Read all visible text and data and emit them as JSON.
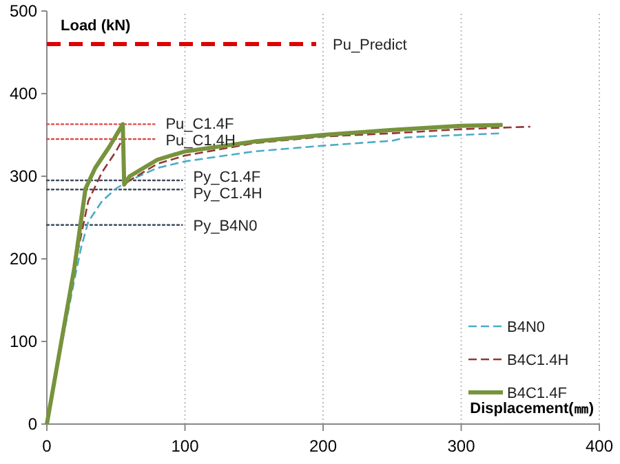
{
  "chart_data": {
    "type": "line",
    "xlabel": "Displacement(㎜)",
    "ylabel": "Load (kN)",
    "xlim": [
      0,
      400
    ],
    "xticks": [
      0,
      100,
      200,
      300,
      400
    ],
    "ylim": [
      0,
      500
    ],
    "yticks": [
      0,
      100,
      200,
      300,
      400,
      500
    ],
    "grid": "x",
    "legend": "bottom right",
    "marker": "none",
    "series": [
      {
        "x": [
          0,
          195
        ],
        "values": [
          460,
          460
        ],
        "color": "#e00000",
        "line_style": "dashed"
      },
      {
        "x": [
          0,
          78
        ],
        "values": [
          363,
          363
        ],
        "color": "#e04848",
        "line_style": "dotted"
      },
      {
        "x": [
          0,
          78
        ],
        "values": [
          345,
          345
        ],
        "color": "#e04848",
        "line_style": "dotted"
      },
      {
        "x": [
          0,
          98
        ],
        "values": [
          295,
          295
        ],
        "color": "#404a60",
        "line_style": "dotted"
      },
      {
        "x": [
          0,
          98
        ],
        "values": [
          284,
          284
        ],
        "color": "#404a60",
        "line_style": "dotted"
      },
      {
        "x": [
          0,
          98
        ],
        "values": [
          241,
          241
        ],
        "color": "#404a60",
        "line_style": "dotted"
      },
      {
        "name": "B4N0",
        "color": "#4bacc6",
        "line_style": "dashed",
        "x": [
          0,
          10,
          20,
          25,
          30,
          40,
          50,
          60,
          80,
          100,
          150,
          200,
          250,
          260,
          300,
          330
        ],
        "values": [
          0,
          90,
          175,
          215,
          245,
          270,
          285,
          295,
          310,
          318,
          330,
          337,
          343,
          347,
          350,
          352
        ]
      },
      {
        "name": "B4C1.4H",
        "color": "#943634",
        "line_style": "dashed",
        "x": [
          0,
          20,
          30,
          40,
          50,
          55,
          56,
          60,
          80,
          100,
          150,
          200,
          250,
          300,
          350
        ],
        "values": [
          0,
          190,
          270,
          305,
          330,
          345,
          290,
          295,
          315,
          325,
          340,
          348,
          352,
          357,
          360
        ]
      },
      {
        "name": "B4C1.4F",
        "color": "#77933c",
        "line_style": "solid",
        "x": [
          0,
          20,
          28,
          35,
          45,
          55,
          56,
          60,
          80,
          100,
          150,
          200,
          250,
          300,
          330
        ],
        "values": [
          0,
          190,
          285,
          310,
          335,
          363,
          290,
          300,
          320,
          330,
          342,
          350,
          356,
          361,
          362
        ]
      }
    ],
    "annotations": [
      {
        "text": "Pu_Predict",
        "x": 195,
        "y": 460
      },
      {
        "text": "Pu_C1.4F",
        "x": 78,
        "y": 363
      },
      {
        "text": "Pu_C1.4H",
        "x": 78,
        "y": 345
      },
      {
        "text": "Py_C1.4F",
        "x": 98,
        "y": 295
      },
      {
        "text": "Py_C1.4H",
        "x": 98,
        "y": 284
      },
      {
        "text": "Py_B4N0",
        "x": 98,
        "y": 241
      }
    ]
  }
}
